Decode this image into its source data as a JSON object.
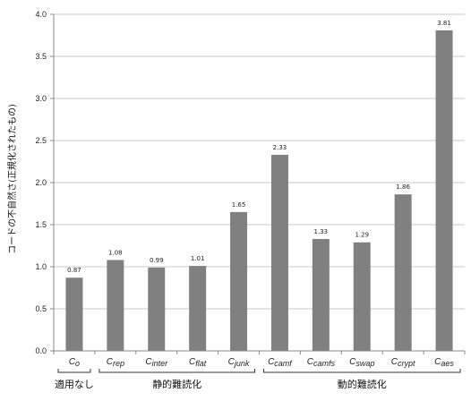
{
  "chart_data": {
    "type": "bar",
    "title": "",
    "xlabel": "",
    "ylabel": "コードの不自然さ(正規化されたもの)",
    "ylim": [
      0,
      4.0
    ],
    "yticks": [
      "0.0",
      "0.5",
      "1.0",
      "1.5",
      "2.0",
      "2.5",
      "3.0",
      "3.5",
      "4.0"
    ],
    "grid": true,
    "legend": "none",
    "categories": [
      {
        "base": "C",
        "sub": "o"
      },
      {
        "base": "C",
        "sub": "rep"
      },
      {
        "base": "C",
        "sub": "inter"
      },
      {
        "base": "C",
        "sub": "flat"
      },
      {
        "base": "C",
        "sub": "junk"
      },
      {
        "base": "C",
        "sub": "camf"
      },
      {
        "base": "C",
        "sub": "camfs"
      },
      {
        "base": "C",
        "sub": "swap"
      },
      {
        "base": "C",
        "sub": "crypt"
      },
      {
        "base": "C",
        "sub": "aes"
      }
    ],
    "values": [
      0.87,
      1.08,
      0.99,
      1.01,
      1.65,
      2.33,
      1.33,
      1.29,
      1.86,
      3.81
    ],
    "value_labels": [
      "0.87",
      "1.08",
      "0.99",
      "1.01",
      "1.65",
      "2.33",
      "1.33",
      "1.29",
      "1.86",
      "3.81"
    ],
    "groups": [
      {
        "label": "適用なし",
        "from": 0,
        "to": 0
      },
      {
        "label": "静的難読化",
        "from": 1,
        "to": 4
      },
      {
        "label": "動的難読化",
        "from": 5,
        "to": 9
      }
    ],
    "colors": {
      "bar": "#808080",
      "grid": "#c8c8c8",
      "axis": "#888888"
    }
  }
}
